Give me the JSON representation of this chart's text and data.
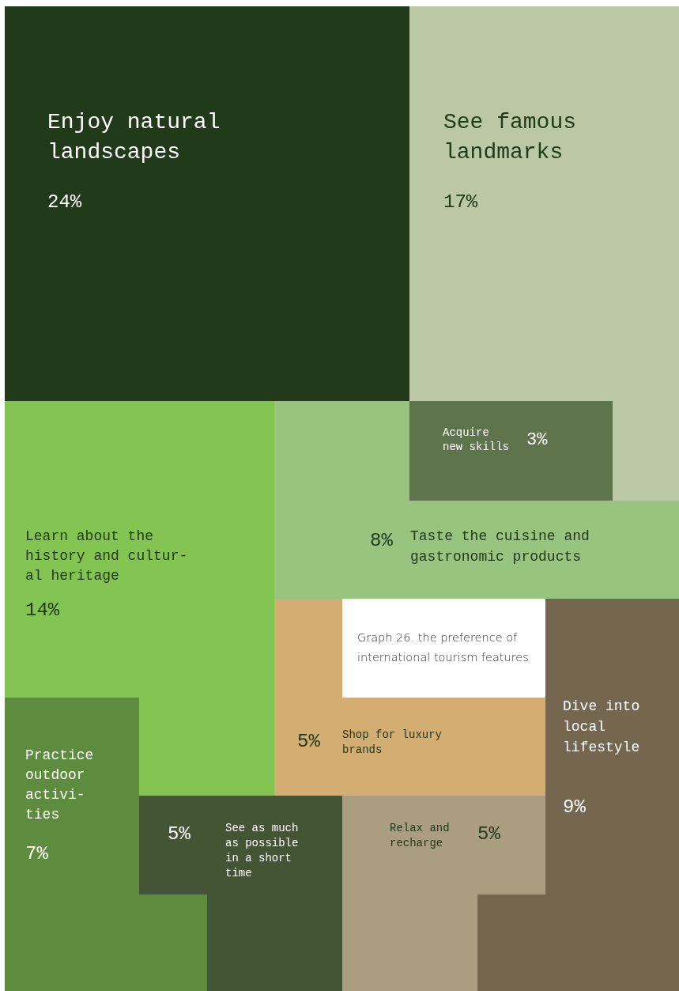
{
  "chart_data": {
    "type": "other",
    "title": "Graph 26. the preference of\ninternational tourism features",
    "categories": [
      "Enjoy natural\nlandscapes",
      "See famous\nlandmarks",
      "Acquire\nnew skills",
      "Taste the cuisine and\ngastronomic products",
      "Learn about the\nhistory and cultur-\nal heritage",
      "Practice\noutdoor\nactivi-\nties",
      "See as much\nas possible\nin a short\ntime",
      "Shop for luxury\nbrands",
      "Relax and\nrecharge",
      "Dive into\nlocal\nlifestyle"
    ],
    "values": [
      24,
      17,
      3,
      8,
      14,
      7,
      5,
      5,
      5,
      9
    ],
    "value_labels": [
      "24%",
      "17%",
      "3%",
      "8%",
      "14%",
      "7%",
      "5%",
      "5%",
      "5%",
      "9%"
    ],
    "colors": [
      "#213a1a",
      "#bbc8a5",
      "#5e744d",
      "#99c47f",
      "#83c453",
      "#5e8c3e",
      "#445535",
      "#d4ad72",
      "#ab9d82",
      "#756650"
    ]
  }
}
